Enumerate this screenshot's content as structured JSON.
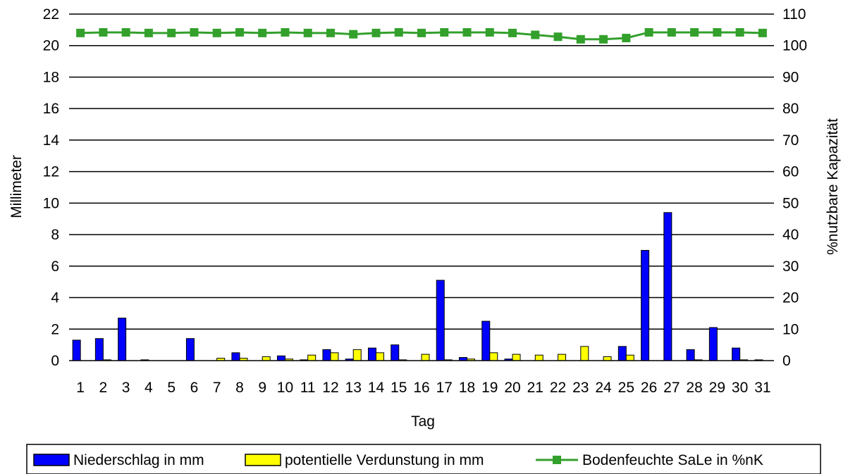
{
  "chart_data": {
    "type": "bar",
    "categories": [
      "1",
      "2",
      "3",
      "4",
      "5",
      "6",
      "7",
      "8",
      "9",
      "10",
      "11",
      "12",
      "13",
      "14",
      "15",
      "16",
      "17",
      "18",
      "19",
      "20",
      "21",
      "22",
      "23",
      "24",
      "25",
      "26",
      "27",
      "28",
      "29",
      "30",
      "31"
    ],
    "series": [
      {
        "name": "Niederschlag in mm",
        "type": "bar",
        "axis": "left",
        "color": "#0000ff",
        "values": [
          1.3,
          1.4,
          2.7,
          0.05,
          0.0,
          1.4,
          0.0,
          0.5,
          0.0,
          0.3,
          0.05,
          0.7,
          0.1,
          0.8,
          1.0,
          0.0,
          5.1,
          0.2,
          2.5,
          0.1,
          0.0,
          0.0,
          0.0,
          0.0,
          0.9,
          7.0,
          9.4,
          0.7,
          2.1,
          0.8,
          0.05
        ]
      },
      {
        "name": "potentielle Verdunstung in mm",
        "type": "bar",
        "axis": "left",
        "color": "#ffff00",
        "values": [
          0.0,
          0.05,
          0.0,
          0.0,
          0.0,
          0.0,
          0.15,
          0.15,
          0.25,
          0.1,
          0.35,
          0.5,
          0.7,
          0.5,
          0.05,
          0.4,
          0.05,
          0.1,
          0.5,
          0.4,
          0.35,
          0.4,
          0.9,
          0.25,
          0.35,
          0.0,
          0.0,
          0.05,
          0.0,
          0.05,
          0.0
        ]
      },
      {
        "name": "Bodenfeuchte SaLe in %nK",
        "type": "line",
        "axis": "right",
        "color": "#33a02c",
        "values": [
          104,
          104.2,
          104.2,
          104,
          104,
          104.2,
          104,
          104.2,
          104,
          104.2,
          104,
          104,
          103.6,
          104,
          104.2,
          104,
          104.2,
          104.2,
          104.2,
          104,
          103.4,
          102.8,
          102,
          102,
          102.4,
          104.2,
          104.2,
          104.2,
          104.2,
          104.2,
          104
        ]
      }
    ],
    "xlabel": "Tag",
    "ylabel": "Millimeter",
    "y2label": "%nutzbare Kapazität",
    "ylim": [
      0,
      22
    ],
    "y2lim": [
      0,
      110
    ],
    "yticks": [
      "0",
      "2",
      "4",
      "6",
      "8",
      "10",
      "12",
      "14",
      "16",
      "18",
      "20",
      "22"
    ],
    "y2ticks": [
      "0",
      "10",
      "20",
      "30",
      "40",
      "50",
      "60",
      "70",
      "80",
      "90",
      "100",
      "110"
    ],
    "grid": true,
    "legend_position": "bottom"
  }
}
